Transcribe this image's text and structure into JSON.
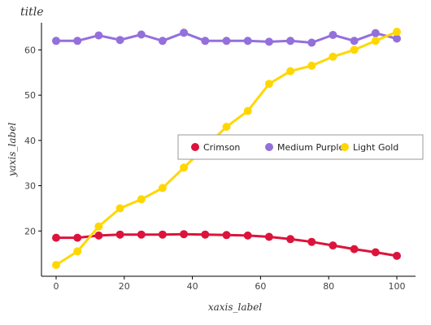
{
  "chart_data": {
    "type": "line",
    "title": "title",
    "xlabel": "xaxis_label",
    "ylabel": "yaxis_label",
    "xlim": [
      0,
      100
    ],
    "ylim": [
      10,
      66
    ],
    "x_ticks": [
      0,
      20,
      40,
      60,
      80,
      100
    ],
    "y_ticks": [
      20,
      30,
      40,
      50,
      60
    ],
    "grid": false,
    "legend_position": "center-right",
    "x": [
      0,
      6.25,
      12.5,
      18.75,
      25,
      31.25,
      37.5,
      43.75,
      50,
      56.25,
      62.5,
      68.75,
      75,
      81.25,
      87.5,
      93.75,
      100
    ],
    "series": [
      {
        "name": "Crimson",
        "color": "#dc143c",
        "values": [
          18.5,
          18.5,
          19.0,
          19.2,
          19.2,
          19.2,
          19.3,
          19.2,
          19.1,
          19.0,
          18.7,
          18.2,
          17.6,
          16.8,
          16.0,
          15.3,
          14.5
        ]
      },
      {
        "name": "Medium Purple",
        "color": "#9370db",
        "values": [
          62.0,
          62.0,
          63.2,
          62.2,
          63.4,
          62.0,
          63.8,
          62.0,
          62.0,
          62.0,
          61.8,
          62.0,
          61.6,
          63.3,
          62.0,
          63.7,
          62.5
        ]
      },
      {
        "name": "Light Gold",
        "color": "#ffd700",
        "values": [
          12.5,
          15.5,
          21.0,
          25.0,
          27.0,
          29.5,
          34.0,
          38.5,
          43.0,
          46.5,
          52.5,
          55.3,
          56.5,
          58.5,
          60.0,
          62.0,
          64.0
        ]
      }
    ]
  }
}
